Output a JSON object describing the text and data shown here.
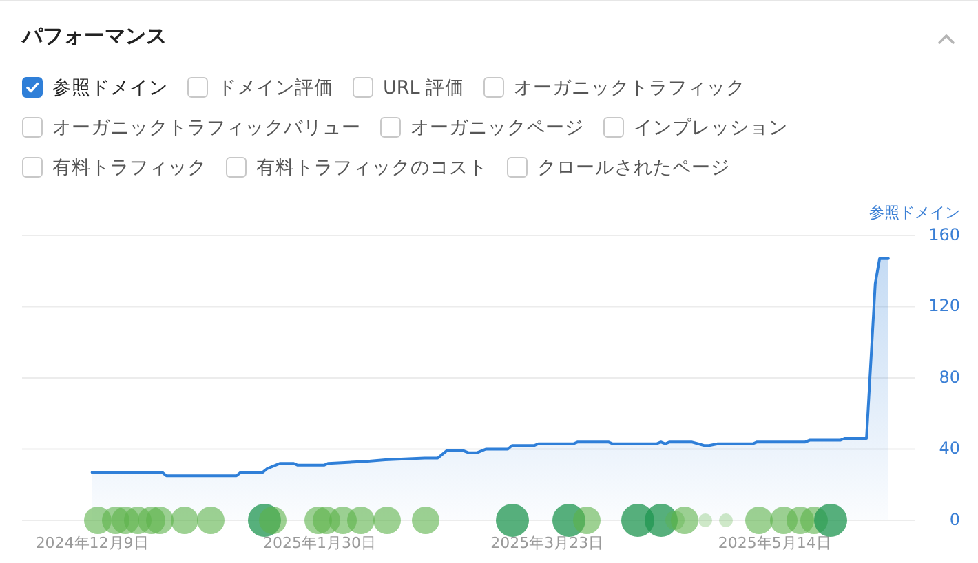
{
  "chart_data": {
    "type": "area",
    "title": "パフォーマンス",
    "ylabel": "参照ドメイン",
    "legend": "top left",
    "grid": "y",
    "annotations": [
      "ドメイン評価",
      "URL 評価",
      "オーガニックトラフィック",
      "オーガニックトラフィックバリュー",
      "オーガニックページ",
      "インプレッション",
      "有料トラフィック",
      "有料トラフィックのコスト",
      "クロールされたページ"
    ],
    "xlim": [
      "2024-11-23",
      "2025-06-15"
    ],
    "xticks": [
      {
        "value": "2024-12-09",
        "label": "2024年12月9日"
      },
      {
        "value": "2025-01-30",
        "label": "2025年1月30日"
      },
      {
        "value": "2025-03-23",
        "label": "2025年3月23日"
      },
      {
        "value": "2025-05-14",
        "label": "2025年5月14日"
      }
    ],
    "ylim": [
      0,
      160
    ],
    "yticks": [
      0,
      40,
      80,
      120,
      160
    ],
    "series": [
      {
        "name": "参照ドメイン",
        "color": "#2f7fd8",
        "x": [
          "2024-12-09",
          "2024-12-25",
          "2024-12-26",
          "2025-01-11",
          "2025-01-12",
          "2025-01-17",
          "2025-01-18",
          "2025-01-21",
          "2025-01-24",
          "2025-01-25",
          "2025-01-31",
          "2025-02-01",
          "2025-02-09",
          "2025-02-14",
          "2025-02-23",
          "2025-02-26",
          "2025-02-28",
          "2025-03-04",
          "2025-03-05",
          "2025-03-07",
          "2025-03-09",
          "2025-03-14",
          "2025-03-15",
          "2025-03-20",
          "2025-03-21",
          "2025-03-29",
          "2025-03-30",
          "2025-04-06",
          "2025-04-07",
          "2025-04-17",
          "2025-04-18",
          "2025-04-19",
          "2025-04-20",
          "2025-04-25",
          "2025-04-28",
          "2025-04-29",
          "2025-05-01",
          "2025-05-09",
          "2025-05-10",
          "2025-05-21",
          "2025-05-22",
          "2025-05-29",
          "2025-05-30",
          "2025-06-04",
          "2025-06-06",
          "2025-06-07",
          "2025-06-09"
        ],
        "values": [
          27,
          27,
          25,
          25,
          27,
          27,
          29,
          32,
          32,
          31,
          31,
          32,
          33,
          34,
          35,
          35,
          39,
          39,
          38,
          38,
          40,
          40,
          42,
          42,
          43,
          43,
          44,
          44,
          43,
          43,
          44,
          43,
          44,
          44,
          42,
          42,
          43,
          43,
          44,
          44,
          45,
          45,
          46,
          46,
          133,
          147,
          147
        ]
      }
    ]
  }
}
